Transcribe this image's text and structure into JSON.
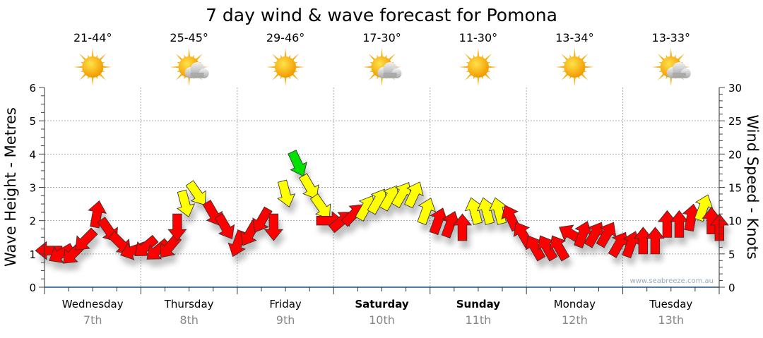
{
  "chart_data": {
    "type": "scatter",
    "title": "7 day wind & wave forecast for Pomona",
    "ylabel": "Wave Height - Metres",
    "y2label": "Wind Speed - Knots",
    "ylim": [
      0,
      6
    ],
    "y2lim": [
      0,
      30
    ],
    "yticks": [
      "0",
      "1",
      "2",
      "3",
      "4",
      "5",
      "6"
    ],
    "y2ticks": [
      "0",
      "5",
      "10",
      "15",
      "20",
      "25",
      "30"
    ],
    "grid": true,
    "watermark": "www.seabreeze.com.au",
    "days": [
      {
        "name": "Wednesday",
        "date": "7th",
        "temp": "21-44°",
        "icon": "sunny",
        "weekend": false
      },
      {
        "name": "Thursday",
        "date": "8th",
        "temp": "25-45°",
        "icon": "partly-cloudy",
        "weekend": false
      },
      {
        "name": "Friday",
        "date": "9th",
        "temp": "29-46°",
        "icon": "sunny",
        "weekend": false
      },
      {
        "name": "Saturday",
        "date": "10th",
        "temp": "17-30°",
        "icon": "partly-cloudy",
        "weekend": true
      },
      {
        "name": "Sunday",
        "date": "11th",
        "temp": "11-30°",
        "icon": "sunny",
        "weekend": true
      },
      {
        "name": "Monday",
        "date": "12th",
        "temp": "13-34°",
        "icon": "sunny",
        "weekend": false
      },
      {
        "name": "Tuesday",
        "date": "13th",
        "temp": "13-33°",
        "icon": "partly-cloudy",
        "weekend": false
      }
    ],
    "colors": {
      "light": "#00e000",
      "moderate": "#ffff00",
      "strong": "#ff0000"
    },
    "wind_points_note": "hour from start, knots, arrow direction degrees, strength",
    "wind": [
      [
        0,
        5.5,
        270,
        "strong"
      ],
      [
        3,
        5,
        240,
        "strong"
      ],
      [
        6,
        5,
        225,
        "strong"
      ],
      [
        9,
        7,
        225,
        "strong"
      ],
      [
        12,
        11,
        10,
        "strong"
      ],
      [
        15,
        8.5,
        145,
        "strong"
      ],
      [
        18,
        6.5,
        135,
        "strong"
      ],
      [
        21,
        5.5,
        250,
        "strong"
      ],
      [
        24,
        6,
        230,
        "strong"
      ],
      [
        27,
        5.5,
        230,
        "strong"
      ],
      [
        30,
        6,
        220,
        "strong"
      ],
      [
        32,
        9,
        180,
        "strong"
      ],
      [
        34,
        12.5,
        165,
        "moderate"
      ],
      [
        37,
        14,
        145,
        "moderate"
      ],
      [
        41,
        11,
        150,
        "strong"
      ],
      [
        44,
        9,
        150,
        "strong"
      ],
      [
        47,
        6.5,
        200,
        "strong"
      ],
      [
        50,
        8,
        210,
        "strong"
      ],
      [
        53,
        10,
        210,
        "strong"
      ],
      [
        56,
        9,
        180,
        "strong"
      ],
      [
        59,
        14,
        165,
        "moderate"
      ],
      [
        62,
        18.5,
        155,
        "light"
      ],
      [
        65,
        15,
        150,
        "moderate"
      ],
      [
        68,
        12,
        145,
        "moderate"
      ],
      [
        70,
        10,
        90,
        "strong"
      ],
      [
        73,
        10,
        50,
        "strong"
      ],
      [
        76,
        11,
        45,
        "strong"
      ],
      [
        79,
        12,
        30,
        "moderate"
      ],
      [
        82,
        13,
        30,
        "moderate"
      ],
      [
        85,
        13.5,
        30,
        "moderate"
      ],
      [
        88,
        14,
        30,
        "moderate"
      ],
      [
        91,
        14,
        25,
        "moderate"
      ],
      [
        94,
        11.5,
        20,
        "moderate"
      ],
      [
        97,
        10,
        20,
        "strong"
      ],
      [
        100,
        9.5,
        20,
        "strong"
      ],
      [
        103,
        9,
        0,
        "strong"
      ],
      [
        106,
        11.5,
        345,
        "moderate"
      ],
      [
        109,
        11.5,
        345,
        "moderate"
      ],
      [
        112,
        11.5,
        345,
        "moderate"
      ],
      [
        115,
        10.5,
        335,
        "strong"
      ],
      [
        118,
        8,
        330,
        "strong"
      ],
      [
        121,
        6,
        330,
        "strong"
      ],
      [
        124,
        6,
        330,
        "strong"
      ],
      [
        127,
        6,
        330,
        "strong"
      ],
      [
        130,
        8,
        300,
        "strong"
      ],
      [
        133,
        8,
        20,
        "strong"
      ],
      [
        136,
        8,
        30,
        "strong"
      ],
      [
        139,
        8,
        30,
        "strong"
      ],
      [
        142,
        6.5,
        30,
        "strong"
      ],
      [
        145,
        6.5,
        20,
        "strong"
      ],
      [
        148,
        7,
        0,
        "strong"
      ],
      [
        151,
        7,
        0,
        "strong"
      ],
      [
        154,
        9.5,
        0,
        "strong"
      ],
      [
        157,
        9.5,
        0,
        "strong"
      ],
      [
        160,
        10.5,
        10,
        "strong"
      ],
      [
        163,
        12,
        20,
        "moderate"
      ],
      [
        165,
        10,
        0,
        "strong"
      ],
      [
        167,
        9,
        0,
        "strong"
      ]
    ]
  }
}
